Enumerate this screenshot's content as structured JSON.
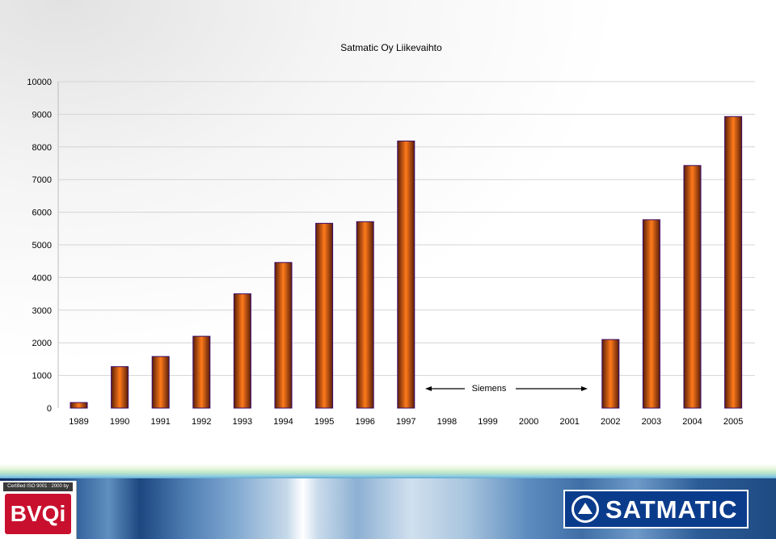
{
  "chart_data": {
    "type": "bar",
    "title": "Satmatic Oy Liikevaihto",
    "xlabel": "",
    "ylabel": "",
    "categories": [
      "1989",
      "1990",
      "1991",
      "1992",
      "1993",
      "1994",
      "1995",
      "1996",
      "1997",
      "1998",
      "1999",
      "2000",
      "2001",
      "2002",
      "2003",
      "2004",
      "2005"
    ],
    "values": [
      170,
      1270,
      1580,
      2200,
      3500,
      4460,
      5660,
      5710,
      8180,
      null,
      null,
      null,
      null,
      2100,
      5770,
      7430,
      8930
    ],
    "ylim": [
      0,
      10000
    ],
    "yticks": [
      "0",
      "1000",
      "2000",
      "3000",
      "4000",
      "5000",
      "6000",
      "7000",
      "8000",
      "9000",
      "10000"
    ],
    "grid": true,
    "legend": "none",
    "annotation": {
      "label": "Siemens",
      "arrow_from": "1998",
      "arrow_to": "2001"
    },
    "colors": {
      "bar_center": "#ff7a1a",
      "bar_edge": "#5a1e08",
      "bar_outline": "#3a0a6b",
      "gridline": "#d4d4d4"
    }
  },
  "footer": {
    "certification_text": "Certified ISO 9001 : 2000 by",
    "certification_logo_text": "BVQi",
    "brand_logo_text": "SATMATIC",
    "brand_color": "#0b3c8c"
  }
}
